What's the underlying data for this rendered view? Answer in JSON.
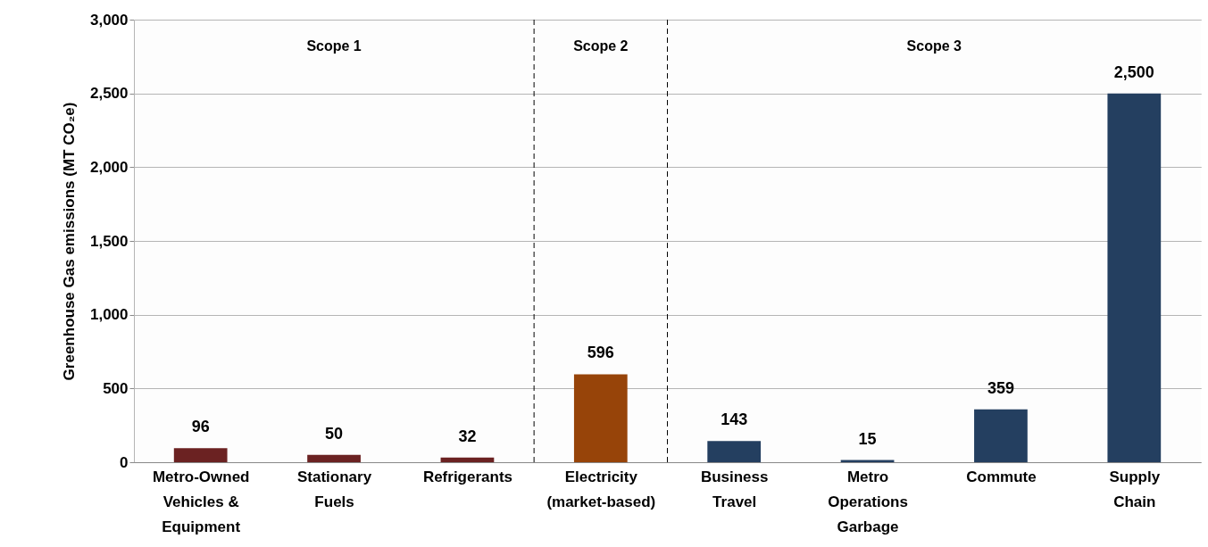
{
  "chart_data": {
    "type": "bar",
    "ylabel": "Greenhouse Gas emissions (MT CO₂e)",
    "categories": [
      "Metro-Owned Vehicles & Equipment",
      "Stationary Fuels",
      "Refrigerants",
      "Electricity (market-based)",
      "Business Travel",
      "Metro Operations Garbage",
      "Commute",
      "Supply Chain"
    ],
    "values": [
      96,
      50,
      32,
      596,
      143,
      15,
      359,
      2500
    ],
    "value_labels": [
      "96",
      "50",
      "32",
      "596",
      "143",
      "15",
      "359",
      "2,500"
    ],
    "colors": [
      "#6b2222",
      "#6b2222",
      "#6b2222",
      "#974409",
      "#243f60",
      "#243f60",
      "#243f60",
      "#243f60"
    ],
    "ylim": [
      0,
      3000
    ],
    "yticks": [
      0,
      500,
      {
        "value": 1000,
        "label": "1,000"
      },
      {
        "value": 1500,
        "label": "1,500"
      },
      {
        "value": 2000,
        "label": "2,000"
      },
      {
        "value": 2500,
        "label": "2,500"
      },
      {
        "value": 3000,
        "label": "3,000"
      }
    ],
    "grid": "y",
    "bands": [
      {
        "axis": "x",
        "from": "Metro-Owned Vehicles & Equipment",
        "to": "Refrigerants",
        "label": "Scope 1",
        "color": "#fafafa"
      },
      {
        "axis": "x",
        "from": "Electricity (market-based)",
        "to": "Electricity (market-based)",
        "label": "Scope 2",
        "color": "#fafafa"
      },
      {
        "axis": "x",
        "from": "Business Travel",
        "to": "Supply Chain",
        "label": "Scope 3",
        "color": "#fafafa"
      }
    ]
  }
}
